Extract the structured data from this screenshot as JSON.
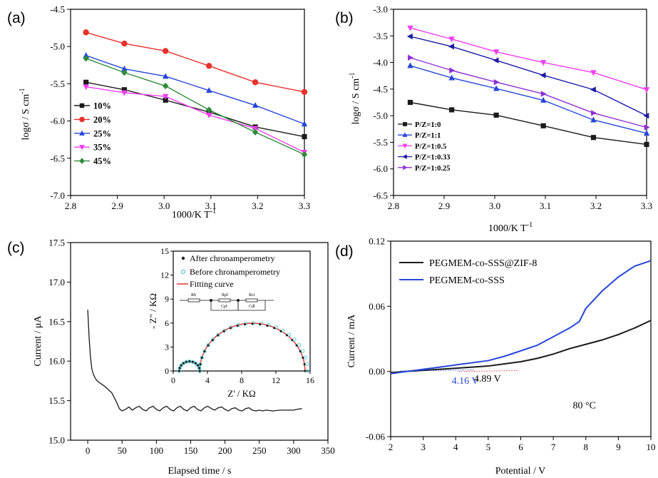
{
  "colors": {
    "black": "#1a1a1a",
    "red": "#e8312a",
    "blue": "#2747d8",
    "magenta": "#f43cf2",
    "green": "#2e8b3a",
    "navy": "#1c1ca8",
    "purple": "#8f2fd8",
    "cyan": "#55c9d6",
    "fit_red": "#e53030",
    "axis": "#000000"
  },
  "chart_data": [
    {
      "id": "a",
      "panel_label": "(a)",
      "type": "line",
      "xlabel": "1000/K T",
      "xlabel_sup": "-1",
      "ylabel": "logσ / S cm",
      "ylabel_sup": "-1",
      "xlim": [
        2.8,
        3.3
      ],
      "ylim": [
        -7.0,
        -4.5
      ],
      "xticks": [
        "2.8",
        "2.9",
        "3.0",
        "3.1",
        "3.2",
        "3.3"
      ],
      "yticks": [
        "-7.0",
        "-6.5",
        "-6.0",
        "-5.5",
        "-5.0",
        "-4.5"
      ],
      "x": [
        2.833,
        2.915,
        3.003,
        3.096,
        3.195,
        3.3
      ],
      "series": [
        {
          "name": "10%",
          "color_key": "black",
          "marker": "square",
          "values": [
            -5.48,
            -5.58,
            -5.72,
            -5.88,
            -6.08,
            -6.21
          ]
        },
        {
          "name": "20%",
          "color_key": "red",
          "marker": "circle",
          "values": [
            -4.81,
            -4.96,
            -5.06,
            -5.26,
            -5.48,
            -5.61
          ]
        },
        {
          "name": "25%",
          "color_key": "blue",
          "marker": "triangle-up",
          "values": [
            -5.12,
            -5.3,
            -5.4,
            -5.59,
            -5.79,
            -6.04
          ]
        },
        {
          "name": "35%",
          "color_key": "magenta",
          "marker": "triangle-down",
          "values": [
            -5.54,
            -5.62,
            -5.67,
            -5.92,
            -6.1,
            -6.42
          ]
        },
        {
          "name": "45%",
          "color_key": "green",
          "marker": "diamond",
          "values": [
            -5.16,
            -5.35,
            -5.53,
            -5.85,
            -6.15,
            -6.45
          ]
        }
      ]
    },
    {
      "id": "b",
      "panel_label": "(b)",
      "type": "line",
      "xlabel": "1000/K T",
      "xlabel_sup": "-1",
      "ylabel": "logσ / S cm",
      "ylabel_sup": "-1",
      "xlim": [
        2.8,
        3.3
      ],
      "ylim": [
        -6.5,
        -3.0
      ],
      "xticks": [
        "2.8",
        "2.9",
        "3.0",
        "3.1",
        "3.2",
        "3.3"
      ],
      "yticks": [
        "-6.5",
        "-6.0",
        "-5.5",
        "-5.0",
        "-4.5",
        "-4.0",
        "-3.5",
        "-3.0"
      ],
      "x": [
        2.833,
        2.915,
        3.003,
        3.096,
        3.195,
        3.3
      ],
      "series": [
        {
          "name": "P/Z=1:0",
          "color_key": "black",
          "marker": "square",
          "values": [
            -4.75,
            -4.89,
            -4.99,
            -5.19,
            -5.41,
            -5.54
          ]
        },
        {
          "name": "P/Z=1:1",
          "color_key": "blue",
          "marker": "triangle-up",
          "values": [
            -4.06,
            -4.29,
            -4.49,
            -4.71,
            -5.08,
            -5.33
          ]
        },
        {
          "name": "P/Z=1:0.5",
          "color_key": "magenta",
          "marker": "triangle-down",
          "values": [
            -3.35,
            -3.56,
            -3.8,
            -4.0,
            -4.19,
            -4.51
          ]
        },
        {
          "name": "P/Z=1:0.33",
          "color_key": "navy",
          "marker": "triangle-left",
          "values": [
            -3.51,
            -3.7,
            -3.96,
            -4.24,
            -4.51,
            -5.0
          ]
        },
        {
          "name": "P/Z=1:0.25",
          "color_key": "purple",
          "marker": "triangle-right",
          "values": [
            -3.91,
            -4.15,
            -4.37,
            -4.59,
            -4.95,
            -5.22
          ]
        }
      ]
    },
    {
      "id": "c",
      "panel_label": "(c)",
      "type": "line",
      "xlabel": "Elapsed time / s",
      "ylabel": "Current / μA",
      "xlim": [
        -25,
        350
      ],
      "ylim": [
        15.0,
        17.5
      ],
      "xticks": [
        "0",
        "50",
        "100",
        "150",
        "200",
        "250",
        "300",
        "350"
      ],
      "yticks": [
        "15.0",
        "15.5",
        "16.0",
        "16.5",
        "17.0",
        "17.5"
      ],
      "series": [
        {
          "name": "current",
          "color_key": "black",
          "x": [
            0,
            2,
            4,
            6,
            8,
            10,
            12,
            15,
            20,
            25,
            30,
            35,
            38,
            42,
            46,
            50,
            55,
            60,
            65,
            70,
            75,
            80,
            85,
            90,
            95,
            100,
            105,
            110,
            115,
            120,
            125,
            130,
            135,
            140,
            145,
            150,
            155,
            160,
            165,
            170,
            175,
            180,
            185,
            190,
            195,
            200,
            205,
            210,
            215,
            220,
            225,
            230,
            235,
            240,
            245,
            250,
            255,
            260,
            270,
            280,
            290,
            300,
            305,
            312
          ],
          "values": [
            16.65,
            16.3,
            16.05,
            15.9,
            15.84,
            15.8,
            15.77,
            15.74,
            15.71,
            15.68,
            15.64,
            15.6,
            15.55,
            15.48,
            15.4,
            15.37,
            15.39,
            15.42,
            15.38,
            15.41,
            15.43,
            15.39,
            15.37,
            15.41,
            15.43,
            15.39,
            15.37,
            15.41,
            15.43,
            15.39,
            15.37,
            15.41,
            15.43,
            15.39,
            15.37,
            15.41,
            15.43,
            15.39,
            15.37,
            15.41,
            15.43,
            15.4,
            15.38,
            15.41,
            15.42,
            15.39,
            15.37,
            15.4,
            15.41,
            15.38,
            15.37,
            15.4,
            15.41,
            15.38,
            15.37,
            15.38,
            15.37,
            15.38,
            15.37,
            15.38,
            15.38,
            15.38,
            15.39,
            15.4
          ]
        }
      ],
      "inset": {
        "type": "scatter",
        "xlabel": "Z' / KΩ",
        "ylabel": "- Z\" / KΩ",
        "xlim": [
          0,
          16
        ],
        "ylim": [
          0,
          15
        ],
        "xticks": [
          "0",
          "4",
          "8",
          "12",
          "16"
        ],
        "yticks": [
          "0",
          "3",
          "6",
          "9",
          "12",
          "15"
        ],
        "legend": [
          "After chronamperometry",
          "Before chronamperometry",
          "Fitting curve"
        ],
        "circuit_labels": [
          "Rb",
          "Rpf",
          "Rct",
          "Cpf",
          "Cdl"
        ],
        "small_arc": {
          "center": 1.9,
          "radius": 1.2
        },
        "large_arc_after": {
          "start": 3.1,
          "end": 15.4,
          "peak": 5.9
        },
        "large_arc_before": {
          "start": 3.1,
          "end": 15.7,
          "peak": 6.0
        }
      }
    },
    {
      "id": "d",
      "panel_label": "(d)",
      "type": "line",
      "xlabel": "Potential / V",
      "ylabel": "Current / mA",
      "xlim": [
        2,
        10
      ],
      "ylim": [
        -0.06,
        0.12
      ],
      "xticks": [
        "2",
        "3",
        "4",
        "5",
        "6",
        "7",
        "8",
        "9",
        "10"
      ],
      "yticks": [
        "-0.06",
        "0.00",
        "0.06",
        "0.12"
      ],
      "annotations": {
        "onset_blue": "4.16 V",
        "onset_black": "4.89 V",
        "temperature": "80 °C"
      },
      "series": [
        {
          "name": "PEGMEM-co-SSS@ZIF-8",
          "color_key": "black",
          "x": [
            2,
            2.5,
            3,
            3.5,
            4,
            4.5,
            5,
            5.5,
            6,
            6.5,
            7,
            7.5,
            8,
            8.5,
            9,
            9.5,
            10
          ],
          "values": [
            -0.001,
            0.0,
            0.001,
            0.002,
            0.003,
            0.004,
            0.005,
            0.007,
            0.009,
            0.012,
            0.016,
            0.021,
            0.025,
            0.029,
            0.034,
            0.04,
            0.047
          ]
        },
        {
          "name": "PEGMEM-co-SSS",
          "color_key": "blue",
          "x": [
            2,
            2.5,
            3,
            3.5,
            4,
            4.5,
            5,
            5.5,
            6,
            6.5,
            7,
            7.5,
            7.8,
            8,
            8.5,
            9,
            9.5,
            10
          ],
          "values": [
            -0.002,
            0.0,
            0.002,
            0.004,
            0.006,
            0.008,
            0.01,
            0.014,
            0.019,
            0.024,
            0.032,
            0.04,
            0.046,
            0.058,
            0.074,
            0.087,
            0.097,
            0.102
          ]
        }
      ]
    }
  ]
}
